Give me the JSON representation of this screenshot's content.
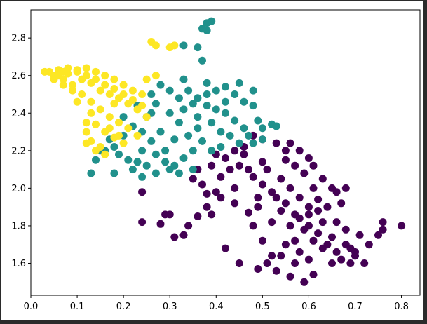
{
  "chart_data": {
    "type": "scatter",
    "title": "",
    "xlabel": "",
    "ylabel": "",
    "xlim": [
      0.0,
      0.84
    ],
    "ylim": [
      1.43,
      2.95
    ],
    "xticks": [
      "0.0",
      "0.1",
      "0.2",
      "0.3",
      "0.4",
      "0.5",
      "0.6",
      "0.7",
      "0.8"
    ],
    "yticks": [
      "1.6",
      "1.8",
      "2.0",
      "2.2",
      "2.4",
      "2.6",
      "2.8"
    ],
    "grid": false,
    "legend": "none",
    "series": [
      {
        "color": "#440154",
        "points": [
          [
            0.55,
            1.92
          ],
          [
            0.52,
            1.98
          ],
          [
            0.57,
            1.86
          ],
          [
            0.6,
            1.8
          ],
          [
            0.48,
            2.06
          ],
          [
            0.45,
            2.12
          ],
          [
            0.5,
            2.02
          ],
          [
            0.62,
            1.76
          ],
          [
            0.64,
            1.7
          ],
          [
            0.58,
            1.84
          ],
          [
            0.42,
            2.16
          ],
          [
            0.47,
            2.1
          ],
          [
            0.53,
            1.95
          ],
          [
            0.59,
            1.78
          ],
          [
            0.63,
            1.68
          ],
          [
            0.66,
            1.66
          ],
          [
            0.44,
            2.0
          ],
          [
            0.49,
            1.9
          ],
          [
            0.56,
            1.8
          ],
          [
            0.61,
            1.72
          ],
          [
            0.51,
            2.1
          ],
          [
            0.54,
            2.05
          ],
          [
            0.46,
            2.18
          ],
          [
            0.41,
            2.06
          ],
          [
            0.4,
            1.98
          ],
          [
            0.67,
            1.62
          ],
          [
            0.69,
            1.6
          ],
          [
            0.72,
            1.6
          ],
          [
            0.7,
            1.64
          ],
          [
            0.73,
            1.7
          ],
          [
            0.75,
            1.75
          ],
          [
            0.8,
            1.8
          ],
          [
            0.76,
            1.82
          ],
          [
            0.76,
            1.78
          ],
          [
            0.39,
            1.86
          ],
          [
            0.34,
            1.8
          ],
          [
            0.31,
            1.74
          ],
          [
            0.36,
            1.85
          ],
          [
            0.38,
            1.9
          ],
          [
            0.29,
            1.86
          ],
          [
            0.3,
            1.86
          ],
          [
            0.28,
            1.81
          ],
          [
            0.24,
            1.82
          ],
          [
            0.33,
            1.75
          ],
          [
            0.42,
            1.68
          ],
          [
            0.45,
            1.6
          ],
          [
            0.49,
            1.57
          ],
          [
            0.53,
            1.56
          ],
          [
            0.56,
            1.53
          ],
          [
            0.59,
            1.5
          ],
          [
            0.61,
            1.54
          ],
          [
            0.57,
            1.6
          ],
          [
            0.52,
            1.64
          ],
          [
            0.5,
            1.72
          ],
          [
            0.48,
            1.8
          ],
          [
            0.55,
            1.7
          ],
          [
            0.6,
            1.62
          ],
          [
            0.47,
            1.87
          ],
          [
            0.54,
            1.88
          ],
          [
            0.56,
            2.0
          ],
          [
            0.58,
            1.95
          ],
          [
            0.6,
            1.9
          ],
          [
            0.62,
            1.88
          ],
          [
            0.61,
            2.0
          ],
          [
            0.59,
            2.08
          ],
          [
            0.57,
            2.12
          ],
          [
            0.55,
            2.2
          ],
          [
            0.53,
            2.24
          ],
          [
            0.5,
            2.26
          ],
          [
            0.48,
            2.28
          ],
          [
            0.46,
            2.22
          ],
          [
            0.43,
            2.1
          ],
          [
            0.44,
            1.92
          ],
          [
            0.41,
            1.95
          ],
          [
            0.38,
            1.97
          ],
          [
            0.37,
            2.02
          ],
          [
            0.35,
            2.05
          ],
          [
            0.36,
            2.1
          ],
          [
            0.39,
            2.12
          ],
          [
            0.4,
            2.18
          ],
          [
            0.62,
            1.94
          ],
          [
            0.64,
            1.9
          ],
          [
            0.66,
            1.82
          ],
          [
            0.68,
            1.78
          ],
          [
            0.65,
            1.74
          ],
          [
            0.63,
            1.82
          ],
          [
            0.6,
            1.86
          ],
          [
            0.57,
            1.72
          ],
          [
            0.54,
            1.64
          ],
          [
            0.51,
            1.6
          ],
          [
            0.58,
            1.66
          ],
          [
            0.65,
            1.6
          ],
          [
            0.68,
            1.7
          ],
          [
            0.71,
            1.75
          ],
          [
            0.69,
            1.68
          ],
          [
            0.7,
            1.66
          ],
          [
            0.52,
            1.82
          ],
          [
            0.49,
            1.95
          ],
          [
            0.5,
            2.14
          ],
          [
            0.44,
            2.2
          ],
          [
            0.55,
            2.15
          ],
          [
            0.61,
            2.12
          ],
          [
            0.63,
            2.05
          ],
          [
            0.65,
            2.0
          ],
          [
            0.67,
            1.92
          ],
          [
            0.68,
            2.0
          ],
          [
            0.66,
            1.98
          ],
          [
            0.6,
            2.16
          ],
          [
            0.58,
            2.2
          ],
          [
            0.56,
            2.24
          ],
          [
            0.24,
            1.98
          ]
        ]
      },
      {
        "color": "#21918c",
        "points": [
          [
            0.3,
            2.4
          ],
          [
            0.32,
            2.35
          ],
          [
            0.28,
            2.3
          ],
          [
            0.34,
            2.28
          ],
          [
            0.36,
            2.32
          ],
          [
            0.27,
            2.45
          ],
          [
            0.25,
            2.38
          ],
          [
            0.22,
            2.33
          ],
          [
            0.2,
            2.28
          ],
          [
            0.18,
            2.22
          ],
          [
            0.16,
            2.2
          ],
          [
            0.17,
            2.26
          ],
          [
            0.19,
            2.18
          ],
          [
            0.21,
            2.15
          ],
          [
            0.24,
            2.2
          ],
          [
            0.26,
            2.25
          ],
          [
            0.29,
            2.2
          ],
          [
            0.31,
            2.26
          ],
          [
            0.33,
            2.42
          ],
          [
            0.35,
            2.45
          ],
          [
            0.3,
            2.52
          ],
          [
            0.28,
            2.55
          ],
          [
            0.26,
            2.5
          ],
          [
            0.32,
            2.48
          ],
          [
            0.34,
            2.52
          ],
          [
            0.36,
            2.48
          ],
          [
            0.38,
            2.44
          ],
          [
            0.4,
            2.42
          ],
          [
            0.42,
            2.4
          ],
          [
            0.44,
            2.36
          ],
          [
            0.46,
            2.32
          ],
          [
            0.47,
            2.28
          ],
          [
            0.45,
            2.24
          ],
          [
            0.43,
            2.28
          ],
          [
            0.41,
            2.3
          ],
          [
            0.39,
            2.35
          ],
          [
            0.37,
            2.25
          ],
          [
            0.35,
            2.2
          ],
          [
            0.33,
            2.16
          ],
          [
            0.31,
            2.12
          ],
          [
            0.29,
            2.14
          ],
          [
            0.27,
            2.18
          ],
          [
            0.25,
            2.12
          ],
          [
            0.23,
            2.14
          ],
          [
            0.39,
            2.2
          ],
          [
            0.41,
            2.22
          ],
          [
            0.38,
            2.5
          ],
          [
            0.4,
            2.52
          ],
          [
            0.42,
            2.54
          ],
          [
            0.44,
            2.5
          ],
          [
            0.46,
            2.46
          ],
          [
            0.48,
            2.44
          ],
          [
            0.49,
            2.36
          ],
          [
            0.5,
            2.32
          ],
          [
            0.5,
            2.26
          ],
          [
            0.52,
            2.34
          ],
          [
            0.53,
            2.33
          ],
          [
            0.48,
            2.24
          ],
          [
            0.3,
            2.1
          ],
          [
            0.27,
            2.08
          ],
          [
            0.24,
            2.06
          ],
          [
            0.22,
            2.1
          ],
          [
            0.35,
            2.1
          ],
          [
            0.32,
            2.08
          ],
          [
            0.18,
            2.08
          ],
          [
            0.13,
            2.08
          ],
          [
            0.14,
            2.15
          ],
          [
            0.15,
            2.2
          ],
          [
            0.2,
            2.38
          ],
          [
            0.23,
            2.44
          ],
          [
            0.33,
            2.58
          ],
          [
            0.38,
            2.56
          ],
          [
            0.45,
            2.56
          ],
          [
            0.48,
            2.52
          ],
          [
            0.42,
            2.46
          ],
          [
            0.36,
            2.38
          ],
          [
            0.24,
            2.3
          ],
          [
            0.26,
            2.4
          ],
          [
            0.36,
            2.75
          ],
          [
            0.37,
            2.85
          ],
          [
            0.38,
            2.88
          ],
          [
            0.39,
            2.89
          ],
          [
            0.38,
            2.84
          ],
          [
            0.33,
            2.76
          ],
          [
            0.37,
            2.68
          ]
        ]
      },
      {
        "color": "#fde725",
        "points": [
          [
            0.04,
            2.62
          ],
          [
            0.05,
            2.6
          ],
          [
            0.06,
            2.63
          ],
          [
            0.07,
            2.58
          ],
          [
            0.08,
            2.61
          ],
          [
            0.09,
            2.55
          ],
          [
            0.1,
            2.62
          ],
          [
            0.11,
            2.58
          ],
          [
            0.12,
            2.6
          ],
          [
            0.13,
            2.56
          ],
          [
            0.14,
            2.58
          ],
          [
            0.15,
            2.52
          ],
          [
            0.16,
            2.55
          ],
          [
            0.17,
            2.5
          ],
          [
            0.18,
            2.53
          ],
          [
            0.19,
            2.48
          ],
          [
            0.2,
            2.5
          ],
          [
            0.21,
            2.45
          ],
          [
            0.22,
            2.47
          ],
          [
            0.23,
            2.42
          ],
          [
            0.24,
            2.44
          ],
          [
            0.25,
            2.38
          ],
          [
            0.22,
            2.52
          ],
          [
            0.2,
            2.55
          ],
          [
            0.18,
            2.58
          ],
          [
            0.16,
            2.6
          ],
          [
            0.14,
            2.62
          ],
          [
            0.12,
            2.64
          ],
          [
            0.1,
            2.63
          ],
          [
            0.08,
            2.64
          ],
          [
            0.06,
            2.6
          ],
          [
            0.05,
            2.58
          ],
          [
            0.07,
            2.55
          ],
          [
            0.09,
            2.52
          ],
          [
            0.11,
            2.5
          ],
          [
            0.13,
            2.46
          ],
          [
            0.15,
            2.42
          ],
          [
            0.17,
            2.38
          ],
          [
            0.19,
            2.35
          ],
          [
            0.21,
            2.32
          ],
          [
            0.23,
            2.28
          ],
          [
            0.2,
            2.24
          ],
          [
            0.18,
            2.27
          ],
          [
            0.16,
            2.3
          ],
          [
            0.14,
            2.34
          ],
          [
            0.12,
            2.35
          ],
          [
            0.12,
            2.3
          ],
          [
            0.13,
            2.25
          ],
          [
            0.15,
            2.22
          ],
          [
            0.16,
            2.18
          ],
          [
            0.14,
            2.2
          ],
          [
            0.12,
            2.24
          ],
          [
            0.13,
            2.4
          ],
          [
            0.24,
            2.5
          ],
          [
            0.25,
            2.58
          ],
          [
            0.27,
            2.6
          ],
          [
            0.26,
            2.78
          ],
          [
            0.27,
            2.76
          ],
          [
            0.3,
            2.75
          ],
          [
            0.31,
            2.76
          ],
          [
            0.03,
            2.62
          ],
          [
            0.07,
            2.62
          ],
          [
            0.18,
            2.45
          ],
          [
            0.17,
            2.32
          ],
          [
            0.19,
            2.28
          ],
          [
            0.1,
            2.46
          ]
        ]
      }
    ]
  }
}
